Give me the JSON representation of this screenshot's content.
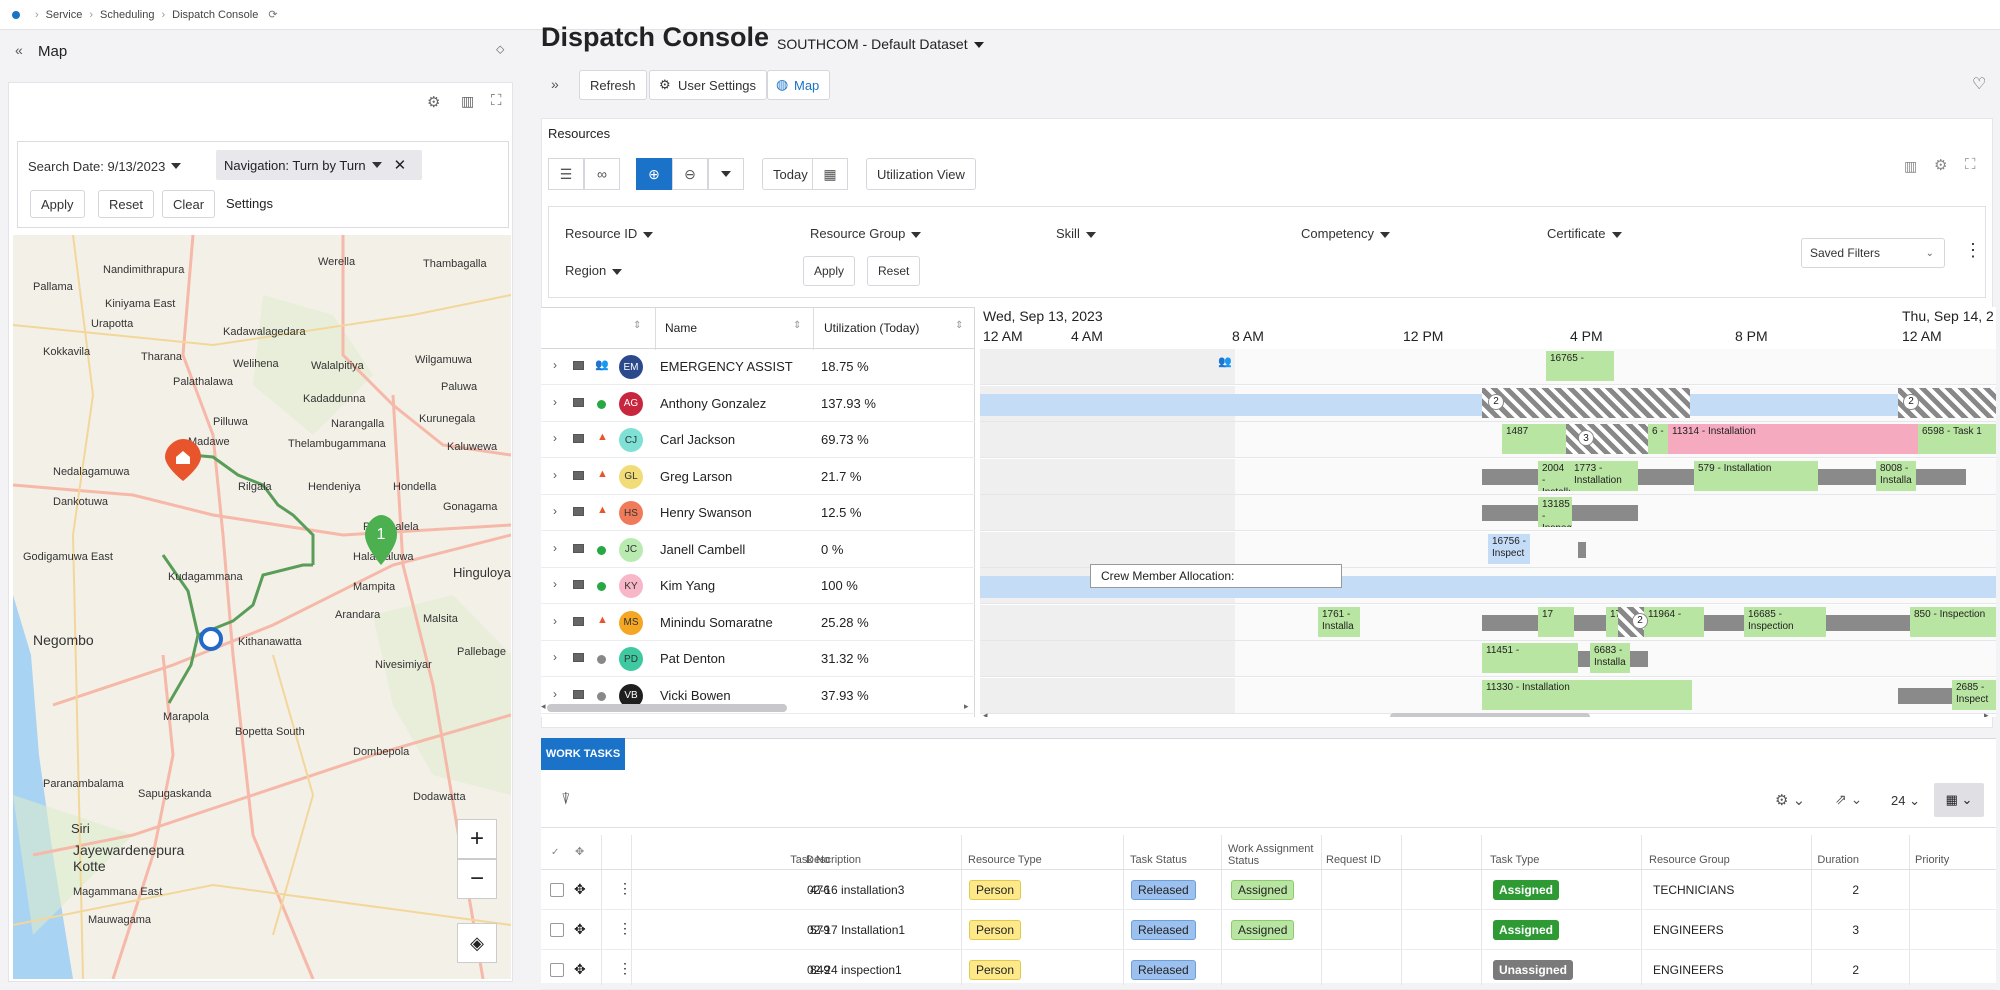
{
  "breadcrumb": {
    "items": [
      "Service",
      "Scheduling",
      "Dispatch Console"
    ]
  },
  "left_panel": {
    "title": "Map",
    "search_date": "Search Date: 9/13/2023",
    "navigation": "Navigation: Turn by Turn",
    "apply": "Apply",
    "reset": "Reset",
    "clear": "Clear",
    "settings": "Settings",
    "map_labels": [
      "Nandimithrapura",
      "Pallama",
      "Kiniyama East",
      "Werella",
      "Thambagalla",
      "Urapotta",
      "Kadawalagedara",
      "Kokkavila",
      "Tharana",
      "Welihena",
      "Walalpitiya",
      "Wilgamuwa",
      "Paluwa",
      "Palathalawa",
      "Kadaddunna",
      "Kurunegala",
      "Pilluwa",
      "Narangalla",
      "Kaluwewa",
      "Madawe",
      "Thelambugammana",
      "Nedalagamuwa",
      "Rilgala",
      "Dankotuwa",
      "Hendeniya",
      "Hondella",
      "Gonagama",
      "Poramalela",
      "Godigamuwa East",
      "Halamaluwa",
      "Kudagammana",
      "Mampita",
      "Hinguloya",
      "Negombo",
      "Arandara",
      "Malsita",
      "Kithanawatta",
      "Nivesimiyar",
      "Pallebage",
      "Marapola",
      "Bopetta South",
      "Dombepola",
      "Paranambalama",
      "Sapugaskanda",
      "Dodawatta",
      "Jayewardenepura",
      "Kotte",
      "Magammana East",
      "Mauwagama",
      "Siri"
    ],
    "home_icon": "home-pin-icon",
    "marker_label": "1"
  },
  "header": {
    "title": "Dispatch Console",
    "dataset": "SOUTHCOM - Default Dataset",
    "refresh": "Refresh",
    "user_settings": "User Settings",
    "map": "Map"
  },
  "resources": {
    "title": "Resources",
    "today": "Today",
    "utilization_view": "Utilization View",
    "filters": {
      "resource_id": "Resource ID",
      "resource_group": "Resource Group",
      "skill": "Skill",
      "competency": "Competency",
      "certificate": "Certificate",
      "region": "Region",
      "apply": "Apply",
      "reset": "Reset",
      "saved_filters": "Saved Filters"
    },
    "columns": {
      "name": "Name",
      "utilization": "Utilization (Today)"
    },
    "rows": [
      {
        "initials": "EM",
        "name": "EMERGENCY ASSIST",
        "util": "18.75 %",
        "color": "#2b4a8c",
        "text": "#ffffff",
        "status": "crew"
      },
      {
        "initials": "AG",
        "name": "Anthony Gonzalez",
        "util": "137.93 %",
        "color": "#c8263f",
        "text": "#ffffff",
        "status": "green"
      },
      {
        "initials": "CJ",
        "name": "Carl Jackson",
        "util": "69.73 %",
        "color": "#7fe0d6",
        "text": "#333333",
        "status": "cone"
      },
      {
        "initials": "GL",
        "name": "Greg Larson",
        "util": "21.7 %",
        "color": "#f1dc78",
        "text": "#333333",
        "status": "cone"
      },
      {
        "initials": "HS",
        "name": "Henry Swanson",
        "util": "12.5 %",
        "color": "#ef7b5a",
        "text": "#333333",
        "status": "cone"
      },
      {
        "initials": "JC",
        "name": "Janell Cambell",
        "util": "0 %",
        "color": "#b9ebb0",
        "text": "#333333",
        "status": "green"
      },
      {
        "initials": "KY",
        "name": "Kim Yang",
        "util": "100 %",
        "color": "#f7b7c9",
        "text": "#333333",
        "status": "green"
      },
      {
        "initials": "MS",
        "name": "Minindu Somaratne",
        "util": "25.28 %",
        "color": "#f5a623",
        "text": "#333333",
        "status": "cone"
      },
      {
        "initials": "PD",
        "name": "Pat Denton",
        "util": "31.32 %",
        "color": "#3ec9a0",
        "text": "#333333",
        "status": "grey"
      },
      {
        "initials": "VB",
        "name": "Vicki Bowen",
        "util": "37.93 %",
        "color": "#1f1f1f",
        "text": "#ffffff",
        "status": "grey"
      }
    ],
    "timeline": {
      "date": "Wed, Sep 13, 2023",
      "next_date": "Thu, Sep 14, 2",
      "hours": [
        "12 AM",
        "4 AM",
        "8 AM",
        "12 PM",
        "4 PM",
        "8 PM",
        "12 AM"
      ]
    },
    "tasks": {
      "t16765": "16765 -",
      "t1487": "1487",
      "t6": "6 -",
      "t11314": "11314 - Installation",
      "t6598": "6598 - Task 1",
      "t2004": "2004 - Installa",
      "t1773": "1773 - Installation",
      "t579": "579 - Installation",
      "t8008": "8008 - Installa",
      "t13185": "13185 - Inspect",
      "t16756": "16756 - Inspect",
      "crew": "Crew Member Allocation:",
      "t1761": "1761 - Installa",
      "t17": "17",
      "t11964": "11964 -",
      "t16685": "16685 - Inspection",
      "t850": "850 - Inspection",
      "t11451": "11451 -",
      "t6683": "6683 - Installa",
      "t11330": "11330 - Installation",
      "t2685": "2685 - Inspect",
      "badge2": "2",
      "badge3": "3"
    }
  },
  "work_tasks": {
    "tab": "WORK TASKS",
    "page_size": "24",
    "columns": [
      "Task No",
      "Description",
      "Resource Type",
      "Task Status",
      "Work Assignment Status",
      "Request ID",
      "Task Type",
      "Resource Group",
      "Duration",
      "Priority"
    ],
    "rows": [
      {
        "task_no": "476",
        "desc": "02-16 installation3",
        "rtype": "Person",
        "status": "Released",
        "was": "Assigned",
        "type": "Assigned",
        "group": "TECHNICIANS",
        "duration": "2"
      },
      {
        "task_no": "579",
        "desc": "02-17 Installation1",
        "rtype": "Person",
        "status": "Released",
        "was": "Assigned",
        "type": "Assigned",
        "group": "ENGINEERS",
        "duration": "3"
      },
      {
        "task_no": "849",
        "desc": "02-24 inspection1",
        "rtype": "Person",
        "status": "Released",
        "was": "",
        "type": "Unassigned",
        "group": "ENGINEERS",
        "duration": "2"
      }
    ]
  }
}
